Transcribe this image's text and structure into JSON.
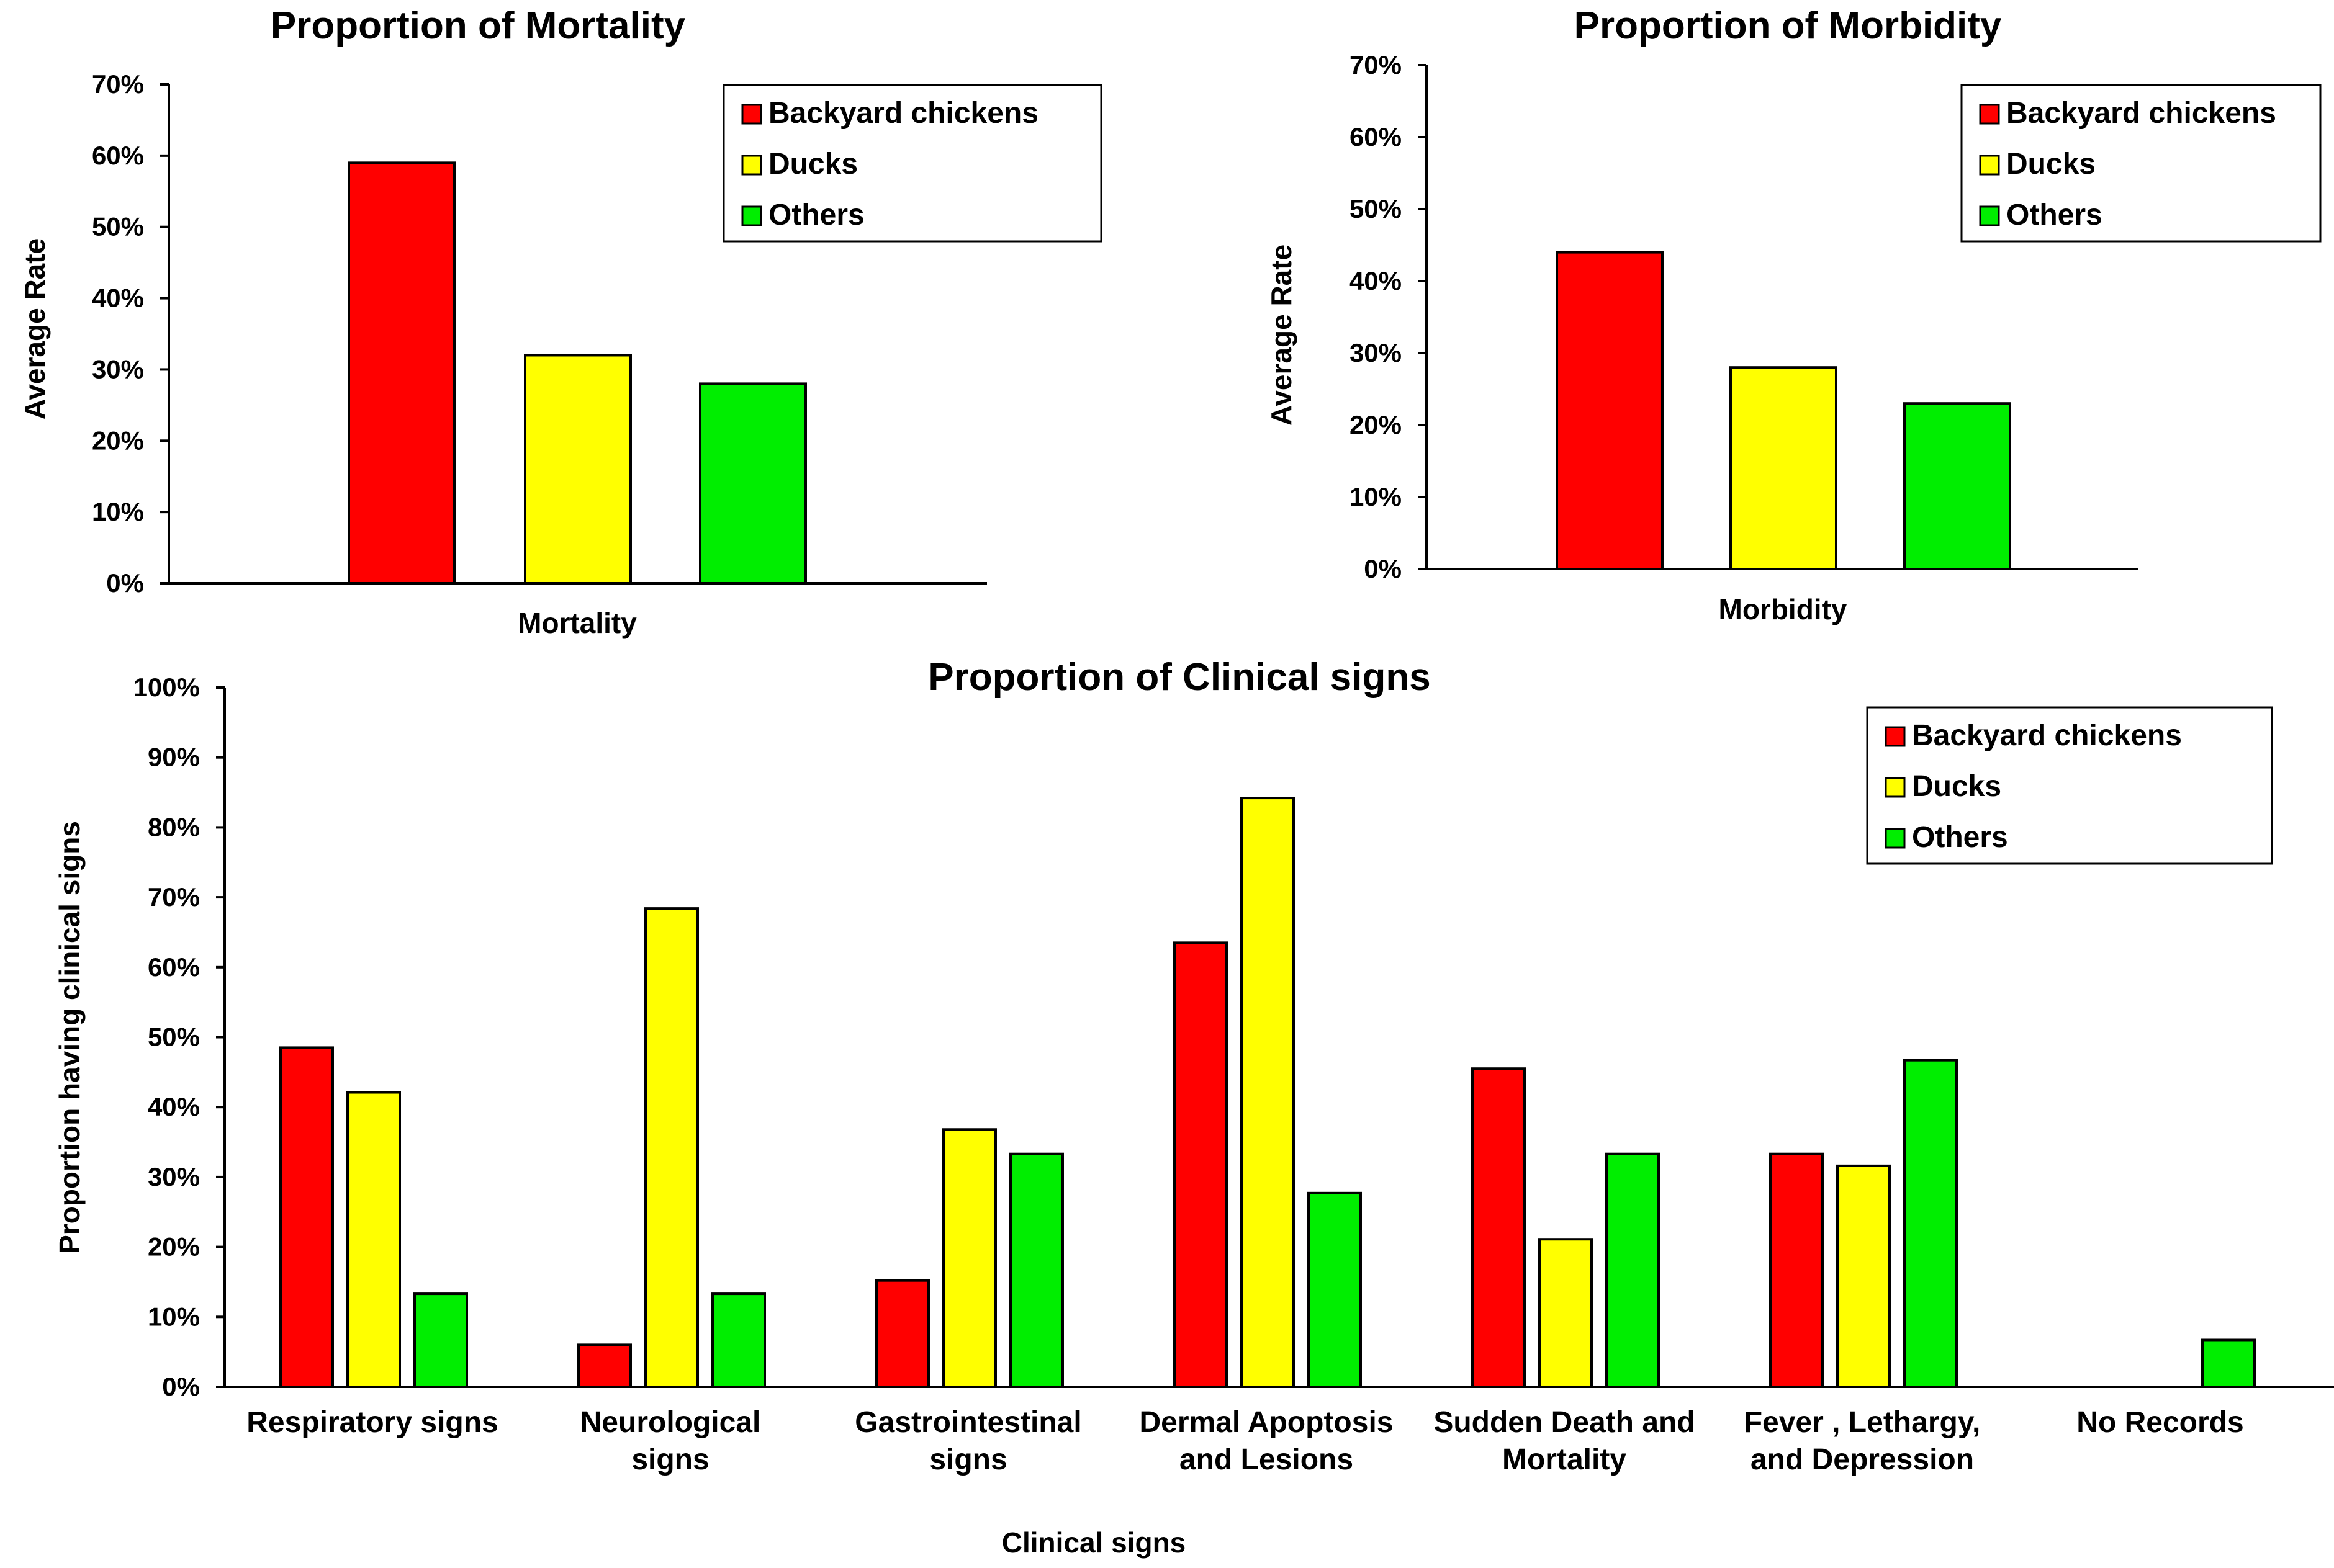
{
  "colors": {
    "Backyard chickens": "#ff0000",
    "Ducks": "#ffff00",
    "Others": "#00ee00"
  },
  "chart_data": [
    {
      "id": "mortality",
      "type": "bar",
      "title": "Proportion of Mortality",
      "xlabel": "Mortality",
      "ylabel": "Average Rate",
      "ylim": [
        0,
        70
      ],
      "yticks": [
        "0%",
        "10%",
        "20%",
        "30%",
        "40%",
        "50%",
        "60%",
        "70%"
      ],
      "categories": [
        "Mortality"
      ],
      "legend": [
        "Backyard chickens",
        "Ducks",
        "Others"
      ],
      "legend_position": "top-right",
      "series": [
        {
          "name": "Backyard chickens",
          "values": [
            59
          ]
        },
        {
          "name": "Ducks",
          "values": [
            32
          ]
        },
        {
          "name": "Others",
          "values": [
            28
          ]
        }
      ]
    },
    {
      "id": "morbidity",
      "type": "bar",
      "title": "Proportion of Morbidity",
      "xlabel": "Morbidity",
      "ylabel": "Average Rate",
      "ylim": [
        0,
        70
      ],
      "yticks": [
        "0%",
        "10%",
        "20%",
        "30%",
        "40%",
        "50%",
        "60%",
        "70%"
      ],
      "categories": [
        "Morbidity"
      ],
      "legend": [
        "Backyard chickens",
        "Ducks",
        "Others"
      ],
      "legend_position": "top-right",
      "series": [
        {
          "name": "Backyard chickens",
          "values": [
            44
          ]
        },
        {
          "name": "Ducks",
          "values": [
            28
          ]
        },
        {
          "name": "Others",
          "values": [
            23
          ]
        }
      ]
    },
    {
      "id": "clinical",
      "type": "bar",
      "title": "Proportion of Clinical signs",
      "xlabel": "Clinical signs",
      "ylabel": "Proportion having clinical signs",
      "ylim": [
        0,
        100
      ],
      "yticks": [
        "0%",
        "10%",
        "20%",
        "30%",
        "40%",
        "50%",
        "60%",
        "70%",
        "80%",
        "90%",
        "100%"
      ],
      "categories": [
        [
          "Respiratory signs"
        ],
        [
          "Neurological",
          "signs"
        ],
        [
          "Gastrointestinal",
          "signs"
        ],
        [
          "Dermal Apoptosis",
          "and Lesions"
        ],
        [
          "Sudden Death and",
          "Mortality"
        ],
        [
          "Fever , Lethargy,",
          "and Depression"
        ],
        [
          "No Records"
        ]
      ],
      "legend": [
        "Backyard chickens",
        "Ducks",
        "Others"
      ],
      "legend_position": "top-right",
      "series": [
        {
          "name": "Backyard chickens",
          "values": [
            48.5,
            6,
            15.2,
            63.5,
            45.5,
            33.3,
            0
          ]
        },
        {
          "name": "Ducks",
          "values": [
            42.1,
            68.4,
            36.8,
            84.2,
            21.1,
            31.6,
            0
          ]
        },
        {
          "name": "Others",
          "values": [
            13.3,
            13.3,
            33.3,
            27.7,
            33.3,
            46.7,
            6.7
          ]
        }
      ]
    }
  ]
}
